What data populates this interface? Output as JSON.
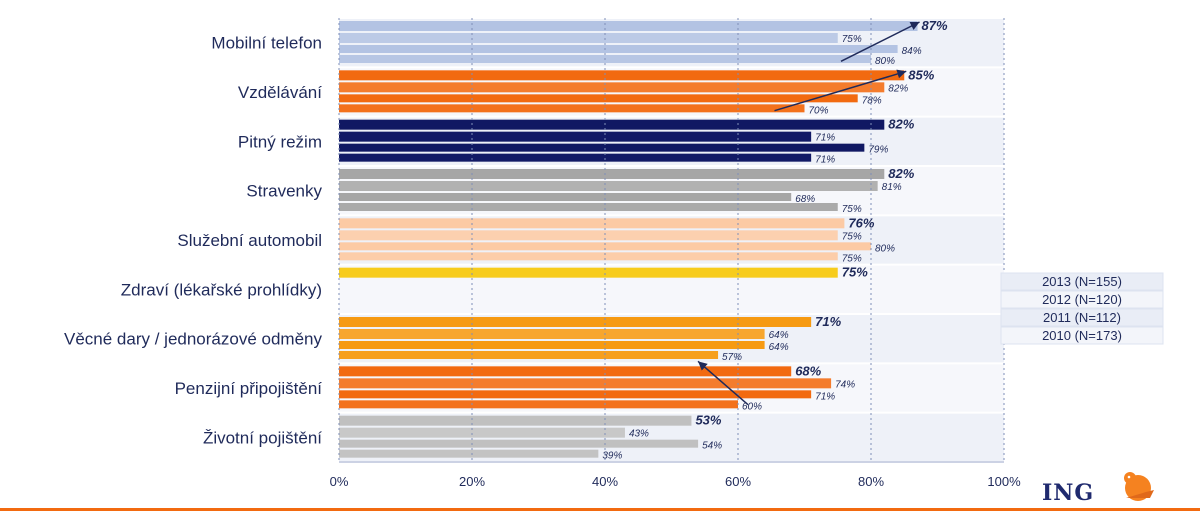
{
  "chart_data": {
    "type": "bar",
    "orientation": "horizontal",
    "categories": [
      "Mobilní telefon",
      "Vzdělávání",
      "Pitný režim",
      "Stravenky",
      "Služební automobil",
      "Zdraví (lékařské prohlídky)",
      "Věcné dary / jednorázové odměny",
      "Penzijní připojištění",
      "Životní pojištění"
    ],
    "series": [
      {
        "name": "2013 (N=155)",
        "values": [
          87,
          85,
          82,
          82,
          76,
          75,
          71,
          68,
          53
        ]
      },
      {
        "name": "2012 (N=120)",
        "values": [
          75,
          82,
          71,
          81,
          75,
          null,
          64,
          74,
          43
        ]
      },
      {
        "name": "2011 (N=112)",
        "values": [
          84,
          78,
          79,
          68,
          80,
          null,
          64,
          71,
          54
        ]
      },
      {
        "name": "2010 (N=173)",
        "values": [
          80,
          70,
          71,
          75,
          75,
          null,
          57,
          60,
          39
        ]
      }
    ],
    "category_colors": [
      "#b3c3e3",
      "#f26a10",
      "#131a66",
      "#a6a6a6",
      "#fccaa4",
      "#f7cc1c",
      "#f69a12",
      "#f26a10",
      "#c0c0c0"
    ],
    "value_labels": [
      [
        "87%",
        "75%",
        "84%",
        "80%"
      ],
      [
        "85%",
        "82%",
        "78%",
        "70%"
      ],
      [
        "82%",
        "71%",
        "79%",
        "71%"
      ],
      [
        "82%",
        "81%",
        "68%",
        "75%"
      ],
      [
        "76%",
        "75%",
        "80%",
        "75%"
      ],
      [
        "75%",
        "",
        "",
        ""
      ],
      [
        "71%",
        "64%",
        "64%",
        "57%"
      ],
      [
        "68%",
        "74%",
        "71%",
        "60%"
      ],
      [
        "53%",
        "43%",
        "54%",
        "39%"
      ]
    ],
    "xticks": [
      "0%",
      "20%",
      "40%",
      "60%",
      "80%",
      "100%"
    ],
    "xlim": [
      0,
      100
    ],
    "legend": {
      "position": "right",
      "items": [
        "2013 (N=155)",
        "2012 (N=120)",
        "2011 (N=112)",
        "2010 (N=173)"
      ]
    },
    "trend_arrows": [
      {
        "category": "Mobilní telefon",
        "direction": "up"
      },
      {
        "category": "Vzdělávání",
        "direction": "up"
      },
      {
        "category": "Penzijní připojištění",
        "direction": "down"
      }
    ],
    "grid": true,
    "title": "",
    "xlabel": "",
    "ylabel": ""
  },
  "branding": {
    "logo_text": "ING",
    "accent_color": "#f26a10"
  }
}
